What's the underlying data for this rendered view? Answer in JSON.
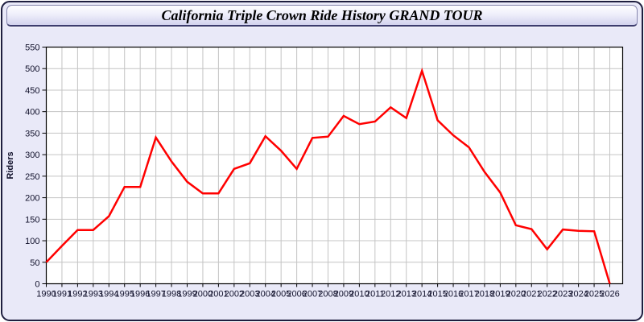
{
  "colors": {
    "line": "#ff0000",
    "panel_bg": "#e9e9f8",
    "plot_bg": "#ffffff",
    "grid": "#c4c4c4",
    "axis": "#000000",
    "frame_border": "#1e1e3f",
    "tick_label": "#10102a"
  },
  "chart_data": {
    "type": "line",
    "title": "California Triple Crown Ride History GRAND TOUR",
    "xlabel": "",
    "ylabel": "Riders",
    "ylim": [
      0,
      550
    ],
    "y_ticks": [
      0,
      50,
      100,
      150,
      200,
      250,
      300,
      350,
      400,
      450,
      500,
      550
    ],
    "grid": true,
    "legend_position": "none",
    "categories": [
      "1990",
      "1991",
      "1992",
      "1993",
      "1994",
      "1995",
      "1996",
      "1997",
      "1998",
      "1999",
      "2000",
      "2001",
      "2002",
      "2003",
      "2004",
      "2005",
      "2006",
      "2007",
      "2008",
      "2009",
      "2010",
      "2011",
      "2012",
      "2013",
      "2014",
      "2015",
      "2016",
      "2017",
      "2018",
      "2019",
      "2020",
      "2021",
      "2022",
      "2023",
      "2024",
      "2025",
      "2026"
    ],
    "series": [
      {
        "name": "Riders",
        "color": "#ff0000",
        "values": [
          50,
          88,
          125,
          125,
          157,
          225,
          225,
          340,
          284,
          237,
          210,
          210,
          267,
          280,
          343,
          309,
          267,
          339,
          342,
          390,
          371,
          377,
          410,
          385,
          495,
          380,
          345,
          317,
          260,
          212,
          136,
          127,
          80,
          126,
          123,
          122,
          0
        ]
      }
    ]
  }
}
